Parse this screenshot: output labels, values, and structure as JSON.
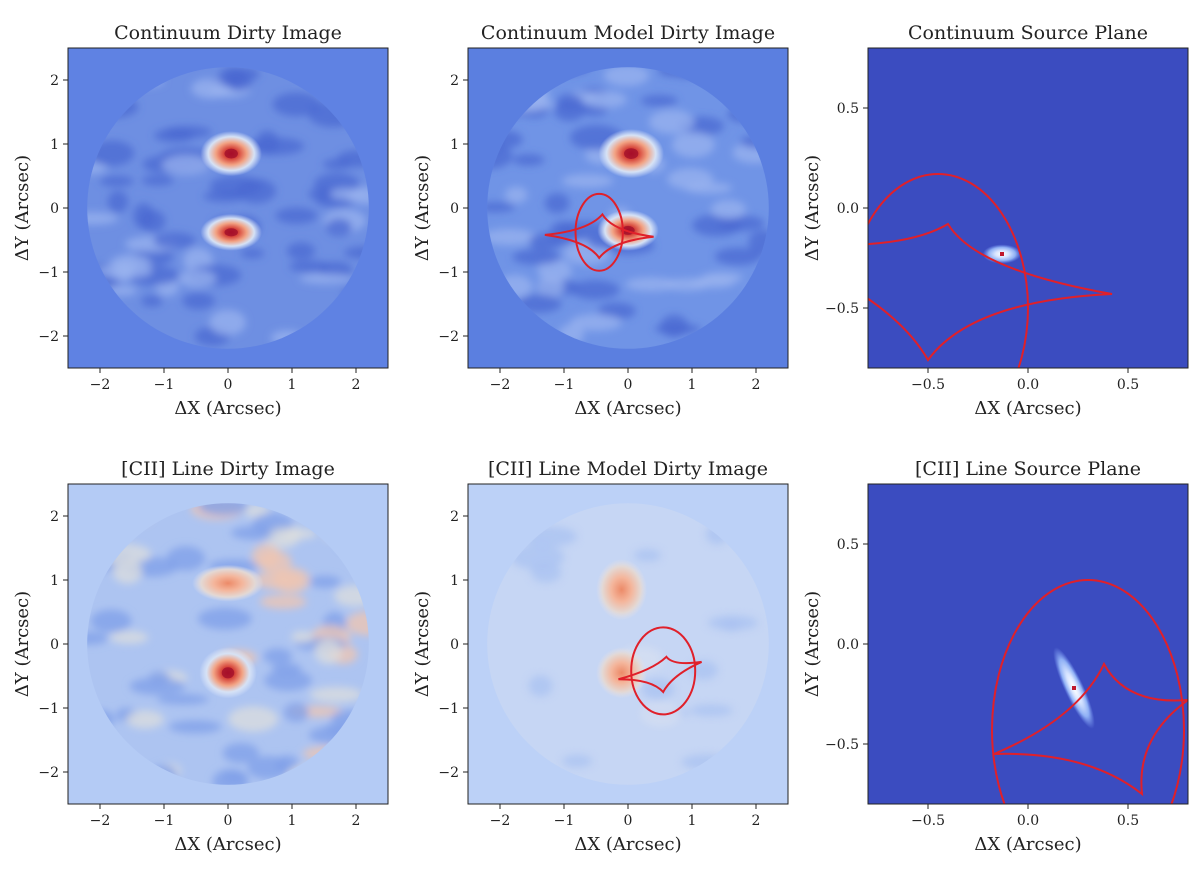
{
  "figure": {
    "background": "#ffffff",
    "colormap": {
      "bg_continuum_dirty": "#5f82e3",
      "bg_continuum_model": "#5b7fe0",
      "bg_source": "#3b4cc0",
      "bg_line_dirty": "#b4cbf5",
      "bg_line_model": "#bcd1f7",
      "low": "#3b4cc0",
      "mid": "#dcdddd",
      "high": "#b40426",
      "peak": "#8b0a1f",
      "caustic": "#e0202a"
    }
  },
  "chart_data": [
    {
      "id": "cont-dirty",
      "type": "heatmap",
      "title": "Continuum Dirty Image",
      "xlabel": "ΔX (Arcsec)",
      "ylabel": "ΔY (Arcsec)",
      "xlim": [
        -2.5,
        2.5
      ],
      "ylim": [
        -2.5,
        2.5
      ],
      "xticks": [
        -2,
        -1,
        0,
        1,
        2
      ],
      "yticks": [
        -2,
        -1,
        0,
        1,
        2
      ],
      "xtick_labels": [
        "−2",
        "−1",
        "0",
        "1",
        "2"
      ],
      "ytick_labels": [
        "−2",
        "−1",
        "0",
        "1",
        "2"
      ],
      "background": "#5f82e3",
      "disk": {
        "center": [
          0,
          0
        ],
        "radius": 2.2
      },
      "sources": [
        {
          "x": 0.05,
          "y": 0.85,
          "sx": 0.3,
          "sy": 0.22,
          "peak": "high"
        },
        {
          "x": 0.05,
          "y": -0.38,
          "sx": 0.3,
          "sy": 0.18,
          "peak": "high"
        }
      ],
      "caustics": []
    },
    {
      "id": "cont-model",
      "type": "heatmap",
      "title": "Continuum Model Dirty Image",
      "xlabel": "ΔX (Arcsec)",
      "ylabel": "ΔY (Arcsec)",
      "xlim": [
        -2.5,
        2.5
      ],
      "ylim": [
        -2.5,
        2.5
      ],
      "xticks": [
        -2,
        -1,
        0,
        1,
        2
      ],
      "yticks": [
        -2,
        -1,
        0,
        1,
        2
      ],
      "xtick_labels": [
        "−2",
        "−1",
        "0",
        "1",
        "2"
      ],
      "ytick_labels": [
        "−2",
        "−1",
        "0",
        "1",
        "2"
      ],
      "background": "#5b7fe0",
      "disk": {
        "center": [
          0,
          0
        ],
        "radius": 2.2
      },
      "sources": [
        {
          "x": 0.05,
          "y": 0.85,
          "sx": 0.32,
          "sy": 0.24,
          "peak": "high"
        },
        {
          "x": 0.0,
          "y": -0.35,
          "sx": 0.3,
          "sy": 0.2,
          "peak": "high"
        }
      ],
      "caustics": [
        {
          "kind": "ellipse",
          "cx": -0.45,
          "cy": -0.38,
          "rx": 0.37,
          "ry": 0.6
        },
        {
          "kind": "astroid",
          "points": [
            [
              -1.3,
              -0.42
            ],
            [
              -0.4,
              -0.1
            ],
            [
              0.4,
              -0.45
            ],
            [
              -0.45,
              -0.78
            ]
          ],
          "bulge": 0.55
        }
      ]
    },
    {
      "id": "cont-source",
      "type": "heatmap",
      "title": "Continuum Source Plane",
      "xlabel": "ΔX (Arcsec)",
      "ylabel": "ΔY (Arcsec)",
      "xlim": [
        -0.8,
        0.8
      ],
      "ylim": [
        -0.8,
        0.8
      ],
      "xticks": [
        -0.5,
        0.0,
        0.5
      ],
      "yticks": [
        -0.5,
        0.0,
        0.5
      ],
      "xtick_labels": [
        "−0.5",
        "0.0",
        "0.5"
      ],
      "ytick_labels": [
        "−0.5",
        "0.0",
        "0.5"
      ],
      "background": "#3b4cc0",
      "disk": null,
      "sources": [
        {
          "x": -0.13,
          "y": -0.23,
          "sx": 0.06,
          "sy": 0.03,
          "peak": "point"
        }
      ],
      "caustics": [
        {
          "kind": "ellipse",
          "cx": -0.45,
          "cy": -0.5,
          "rx": 0.45,
          "ry": 0.67
        },
        {
          "kind": "astroid",
          "points": [
            [
              -1.45,
              -0.15
            ],
            [
              -0.4,
              -0.08
            ],
            [
              0.42,
              -0.43
            ],
            [
              -0.5,
              -0.76
            ]
          ],
          "bulge": 0.55
        }
      ]
    },
    {
      "id": "line-dirty",
      "type": "heatmap",
      "title": "[CII] Line Dirty Image",
      "xlabel": "ΔX (Arcsec)",
      "ylabel": "ΔY (Arcsec)",
      "xlim": [
        -2.5,
        2.5
      ],
      "ylim": [
        -2.5,
        2.5
      ],
      "xticks": [
        -2,
        -1,
        0,
        1,
        2
      ],
      "yticks": [
        -2,
        -1,
        0,
        1,
        2
      ],
      "xtick_labels": [
        "−2",
        "−1",
        "0",
        "1",
        "2"
      ],
      "ytick_labels": [
        "−2",
        "−1",
        "0",
        "1",
        "2"
      ],
      "background": "#b4cbf5",
      "disk": {
        "center": [
          0,
          0
        ],
        "radius": 2.2
      },
      "sources": [
        {
          "x": 0.0,
          "y": 0.95,
          "sx": 0.35,
          "sy": 0.18,
          "peak": "warm"
        },
        {
          "x": 0.0,
          "y": -0.45,
          "sx": 0.28,
          "sy": 0.25,
          "peak": "high"
        }
      ],
      "caustics": []
    },
    {
      "id": "line-model",
      "type": "heatmap",
      "title": "[CII] Line Model Dirty Image",
      "xlabel": "ΔX (Arcsec)",
      "ylabel": "ΔY (Arcsec)",
      "xlim": [
        -2.5,
        2.5
      ],
      "ylim": [
        -2.5,
        2.5
      ],
      "xticks": [
        -2,
        -1,
        0,
        1,
        2
      ],
      "yticks": [
        -2,
        -1,
        0,
        1,
        2
      ],
      "xtick_labels": [
        "−2",
        "−1",
        "0",
        "1",
        "2"
      ],
      "ytick_labels": [
        "−2",
        "−1",
        "0",
        "1",
        "2"
      ],
      "background": "#bcd1f7",
      "disk": {
        "center": [
          0,
          0
        ],
        "radius": 2.2
      },
      "sources": [
        {
          "x": -0.1,
          "y": 0.85,
          "sx": 0.25,
          "sy": 0.3,
          "peak": "warm"
        },
        {
          "x": -0.1,
          "y": -0.45,
          "sx": 0.25,
          "sy": 0.25,
          "peak": "warm"
        }
      ],
      "caustics": [
        {
          "kind": "ellipse",
          "cx": 0.55,
          "cy": -0.42,
          "rx": 0.5,
          "ry": 0.68
        },
        {
          "kind": "astroid",
          "points": [
            [
              -0.15,
              -0.55
            ],
            [
              0.6,
              -0.2
            ],
            [
              1.15,
              -0.28
            ],
            [
              0.55,
              -0.75
            ]
          ],
          "bulge": 0.5
        }
      ]
    },
    {
      "id": "line-source",
      "type": "heatmap",
      "title": "[CII] Line Source Plane",
      "xlabel": "ΔX (Arcsec)",
      "ylabel": "ΔY (Arcsec)",
      "xlim": [
        -0.8,
        0.8
      ],
      "ylim": [
        -0.8,
        0.8
      ],
      "xticks": [
        -0.5,
        0.0,
        0.5
      ],
      "yticks": [
        -0.5,
        0.0,
        0.5
      ],
      "xtick_labels": [
        "−0.5",
        "0.0",
        "0.5"
      ],
      "ytick_labels": [
        "−0.5",
        "0.0",
        "0.5"
      ],
      "background": "#3b4cc0",
      "disk": null,
      "sources": [
        {
          "x": 0.23,
          "y": -0.22,
          "sx": 0.03,
          "sy": 0.14,
          "peak": "point",
          "angle": -25
        }
      ],
      "caustics": [
        {
          "kind": "ellipse",
          "cx": 0.3,
          "cy": -0.43,
          "rx": 0.48,
          "ry": 0.75
        },
        {
          "kind": "astroid",
          "points": [
            [
              -0.17,
              -0.55
            ],
            [
              0.38,
              -0.1
            ],
            [
              0.8,
              -0.28
            ],
            [
              0.57,
              -0.75
            ]
          ],
          "bulge": 0.5
        }
      ]
    }
  ]
}
